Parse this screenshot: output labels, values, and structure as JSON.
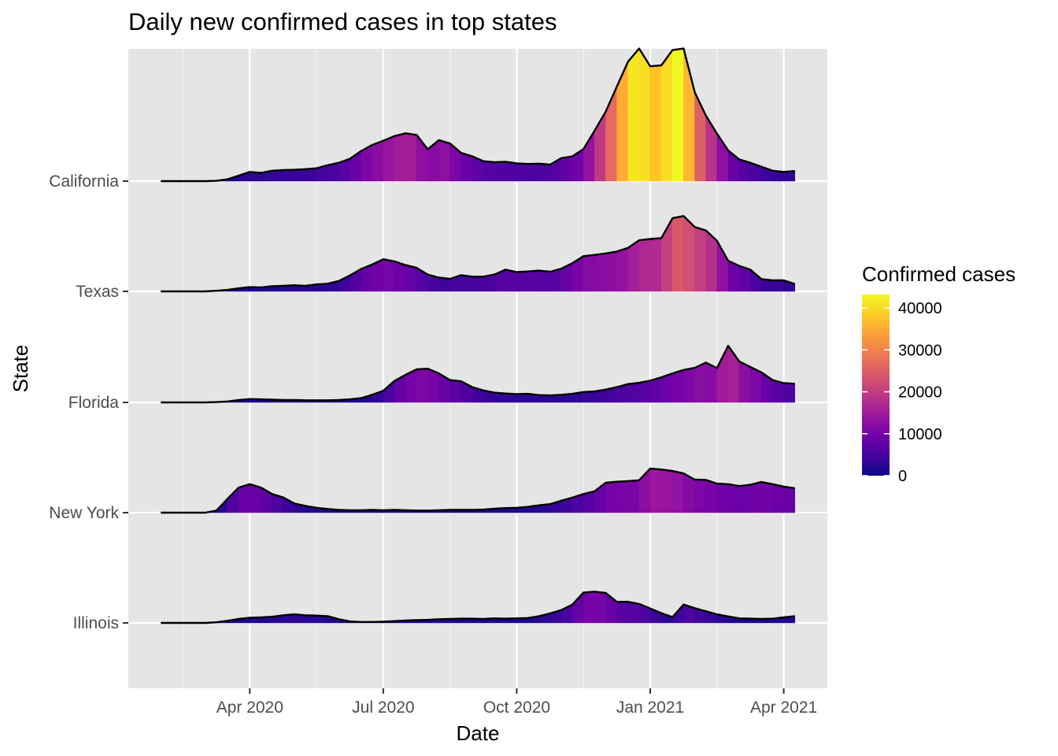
{
  "chart_data": {
    "type": "ridgeline-area",
    "title": "Daily new confirmed cases in top states",
    "xlabel": "Date",
    "ylabel": "State",
    "x_ticks": [
      "Apr 2020",
      "Jul 2020",
      "Oct 2020",
      "Jan 2021",
      "Apr 2021"
    ],
    "x_tick_values": [
      2.0,
      5.0,
      8.0,
      11.0,
      14.0
    ],
    "x_range": [
      -0.73,
      14.98
    ],
    "x_unit": "months since 2020-02-01",
    "legend": {
      "title": "Confirmed cases",
      "labels": [
        "0",
        "10000",
        "20000",
        "30000",
        "40000"
      ],
      "values": [
        0,
        10000,
        20000,
        30000,
        40000
      ],
      "min": 0,
      "max": 43200,
      "colors": [
        "#0d0887",
        "#46039f",
        "#7201a8",
        "#9c179e",
        "#bd3786",
        "#d8576b",
        "#ed7953",
        "#fb9f3a",
        "#fdca26",
        "#f0f921"
      ]
    },
    "x": [
      0.0,
      0.25,
      0.5,
      0.75,
      1.0,
      1.25,
      1.5,
      1.75,
      2.0,
      2.25,
      2.5,
      2.75,
      3.0,
      3.25,
      3.5,
      3.75,
      4.0,
      4.25,
      4.5,
      4.75,
      5.0,
      5.25,
      5.5,
      5.75,
      6.0,
      6.25,
      6.5,
      6.75,
      7.0,
      7.25,
      7.5,
      7.75,
      8.0,
      8.25,
      8.5,
      8.75,
      9.0,
      9.25,
      9.5,
      9.75,
      10.0,
      10.25,
      10.5,
      10.75,
      11.0,
      11.25,
      11.5,
      11.75,
      12.0,
      12.25,
      12.5,
      12.75,
      13.0,
      13.25,
      13.5,
      13.75,
      14.0,
      14.25
    ],
    "series": [
      {
        "name": "California",
        "values": [
          0,
          0,
          0,
          0,
          0,
          100,
          600,
          1800,
          3000,
          2700,
          3400,
          3600,
          3700,
          3900,
          4200,
          5200,
          6000,
          7300,
          9800,
          11800,
          13200,
          14700,
          15600,
          15100,
          10400,
          13400,
          12300,
          9200,
          8100,
          6500,
          6200,
          6300,
          5800,
          5600,
          5700,
          5400,
          7500,
          8100,
          10500,
          16500,
          22700,
          30900,
          39000,
          43300,
          37500,
          37800,
          42800,
          43300,
          29000,
          21400,
          15500,
          10000,
          7100,
          6000,
          4700,
          3400,
          3000,
          3300
        ]
      },
      {
        "name": "Texas",
        "values": [
          0,
          0,
          0,
          0,
          0,
          200,
          500,
          1000,
          1400,
          1300,
          1700,
          1800,
          2000,
          1800,
          2300,
          2500,
          3400,
          5200,
          7300,
          8800,
          10500,
          9800,
          8600,
          7700,
          5500,
          4500,
          4100,
          5300,
          4800,
          4800,
          5500,
          7100,
          6300,
          6500,
          6800,
          6400,
          7400,
          9200,
          11500,
          11900,
          12400,
          13000,
          14200,
          16700,
          17100,
          17400,
          23900,
          24600,
          21000,
          19900,
          16500,
          10000,
          8300,
          7100,
          4000,
          3600,
          3600,
          2400
        ]
      },
      {
        "name": "Florida",
        "values": [
          0,
          0,
          0,
          0,
          0,
          100,
          300,
          800,
          1100,
          1000,
          900,
          800,
          800,
          700,
          700,
          700,
          800,
          1000,
          1400,
          2500,
          3800,
          7000,
          9000,
          10800,
          11000,
          9500,
          7300,
          6900,
          5000,
          3900,
          3200,
          2900,
          2700,
          2800,
          2400,
          2300,
          2500,
          2800,
          3400,
          3600,
          4200,
          5000,
          6000,
          6400,
          7100,
          8200,
          9500,
          10600,
          11300,
          13000,
          11200,
          18500,
          13400,
          11600,
          9800,
          7300,
          6300,
          6100
        ]
      },
      {
        "name": "New York",
        "values": [
          0,
          0,
          0,
          0,
          0,
          700,
          4500,
          8200,
          9300,
          8200,
          6100,
          5000,
          3000,
          2200,
          1600,
          1200,
          900,
          800,
          800,
          900,
          800,
          900,
          800,
          700,
          700,
          800,
          900,
          900,
          900,
          1000,
          1300,
          1500,
          1600,
          1900,
          2400,
          2800,
          3900,
          4900,
          6100,
          7000,
          9800,
          10100,
          10300,
          10600,
          14400,
          14100,
          13600,
          12800,
          10800,
          10700,
          9500,
          9300,
          8700,
          9100,
          10000,
          9300,
          8500,
          8000
        ]
      },
      {
        "name": "Illinois",
        "values": [
          0,
          0,
          0,
          0,
          0,
          200,
          700,
          1300,
          1700,
          1800,
          2000,
          2500,
          2800,
          2500,
          2400,
          2200,
          1200,
          500,
          300,
          300,
          400,
          600,
          800,
          900,
          1000,
          1200,
          1300,
          1400,
          1400,
          1300,
          1500,
          1400,
          1500,
          1600,
          2200,
          3100,
          4200,
          6000,
          9900,
          10200,
          9800,
          6900,
          6900,
          6200,
          4700,
          3200,
          1900,
          6000,
          4800,
          3800,
          2800,
          2100,
          1500,
          1400,
          1300,
          1400,
          1800,
          2200
        ]
      }
    ]
  }
}
